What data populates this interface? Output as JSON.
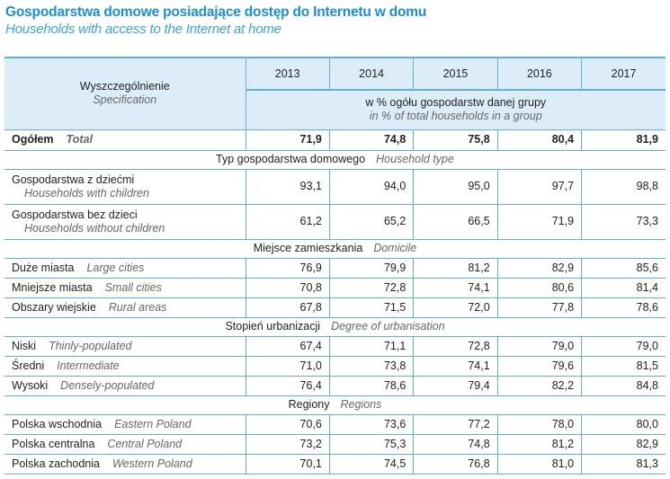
{
  "title": "Gospodarstwa domowe posiadające dostęp do Internetu w domu",
  "subtitle": "Households with access to the Internet at home",
  "header": {
    "spec_pl": "Wyszczególnienie",
    "spec_en": "Specification",
    "years": [
      "2013",
      "2014",
      "2015",
      "2016",
      "2017"
    ],
    "unit_pl": "w % ogółu gospodarstw danej grupy",
    "unit_en": "in % of total households in a group"
  },
  "total": {
    "pl": "Ogółem",
    "en": "Total",
    "values": [
      "71,9",
      "74,8",
      "75,8",
      "80,4",
      "81,9"
    ]
  },
  "sections": [
    {
      "pl": "Typ gospodarstwa domowego",
      "en": "Household type",
      "rows": [
        {
          "pl": "Gospodarstwa z dziećmi",
          "en": "Households with children",
          "values": [
            "93,1",
            "94,0",
            "95,0",
            "97,7",
            "98,8"
          ]
        },
        {
          "pl": "Gospodarstwa bez dzieci",
          "en": "Households without children",
          "values": [
            "61,2",
            "65,2",
            "66,5",
            "71,9",
            "73,3"
          ]
        }
      ]
    },
    {
      "pl": "Miejsce zamieszkania",
      "en": "Domicile",
      "rows": [
        {
          "pl": "Duże miasta",
          "en": "Large cities",
          "values": [
            "76,9",
            "79,9",
            "81,2",
            "82,9",
            "85,6"
          ]
        },
        {
          "pl": "Mniejsze miasta",
          "en": "Small cities",
          "values": [
            "70,8",
            "72,8",
            "74,1",
            "80,6",
            "81,4"
          ]
        },
        {
          "pl": "Obszary wiejskie",
          "en": "Rural areas",
          "values": [
            "67,8",
            "71,5",
            "72,0",
            "77,8",
            "78,6"
          ]
        }
      ]
    },
    {
      "pl": "Stopień urbanizacji",
      "en": "Degree of urbanisation",
      "rows": [
        {
          "pl": "Niski",
          "en": "Thinly-populated",
          "values": [
            "67,4",
            "71,1",
            "72,8",
            "79,0",
            "79,0"
          ]
        },
        {
          "pl": "Średni",
          "en": "Intermediate",
          "values": [
            "71,0",
            "73,8",
            "74,1",
            "79,6",
            "81,5"
          ]
        },
        {
          "pl": "Wysoki",
          "en": "Densely-populated",
          "values": [
            "76,4",
            "78,6",
            "79,4",
            "82,2",
            "84,8"
          ]
        }
      ]
    },
    {
      "pl": "Regiony",
      "en": "Regions",
      "rows": [
        {
          "pl": "Polska wschodnia",
          "en": "Eastern Poland",
          "values": [
            "70,6",
            "73,6",
            "77,2",
            "78,0",
            "80,0"
          ]
        },
        {
          "pl": "Polska centralna",
          "en": "Central Poland",
          "values": [
            "73,2",
            "75,3",
            "74,8",
            "81,2",
            "82,9"
          ]
        },
        {
          "pl": "Polska zachodnia",
          "en": "Western Poland",
          "values": [
            "70,1",
            "74,5",
            "76,8",
            "81,0",
            "81,3"
          ]
        }
      ]
    }
  ]
}
